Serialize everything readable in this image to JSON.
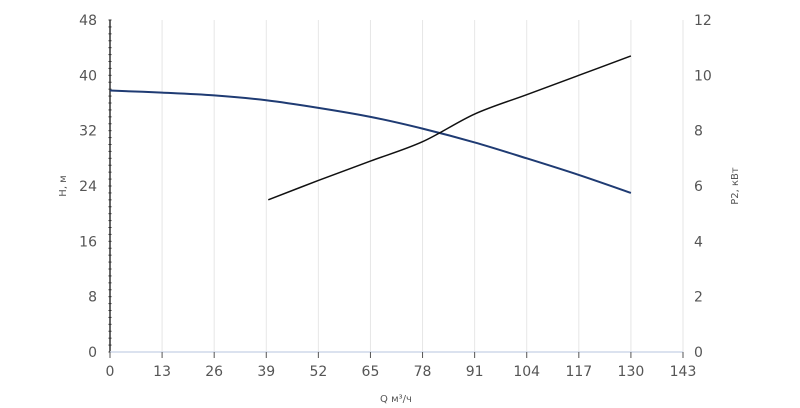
{
  "chart_data": {
    "type": "line",
    "x_axis": {
      "label": "Q м³/ч",
      "range": [
        0,
        143
      ],
      "ticks": [
        0,
        13,
        26,
        39,
        52,
        65,
        78,
        91,
        104,
        117,
        130,
        143
      ]
    },
    "y_axis_left": {
      "label": "H, м",
      "range": [
        0,
        48
      ],
      "ticks": [
        0,
        8,
        16,
        24,
        32,
        40,
        48
      ]
    },
    "y_axis_right": {
      "label": "P2, кВт",
      "range": [
        0,
        12
      ],
      "ticks": [
        0,
        2,
        4,
        6,
        8,
        10,
        12
      ]
    },
    "grid": "vertical",
    "series": [
      {
        "axis": "left",
        "color": "#1f3b73",
        "points": [
          [
            0,
            37.8
          ],
          [
            13,
            37.5
          ],
          [
            26,
            37.1
          ],
          [
            39,
            36.4
          ],
          [
            52,
            35.3
          ],
          [
            65,
            34.0
          ],
          [
            78,
            32.3
          ],
          [
            91,
            30.3
          ],
          [
            104,
            28.0
          ],
          [
            117,
            25.6
          ],
          [
            130,
            23.0
          ]
        ]
      },
      {
        "axis": "right",
        "color": "#111111",
        "points": [
          [
            39.5,
            5.5
          ],
          [
            52,
            6.2
          ],
          [
            65,
            6.9
          ],
          [
            78,
            7.6
          ],
          [
            91,
            8.6
          ],
          [
            104,
            9.3
          ],
          [
            117,
            10.0
          ],
          [
            130,
            10.7
          ]
        ]
      }
    ]
  }
}
